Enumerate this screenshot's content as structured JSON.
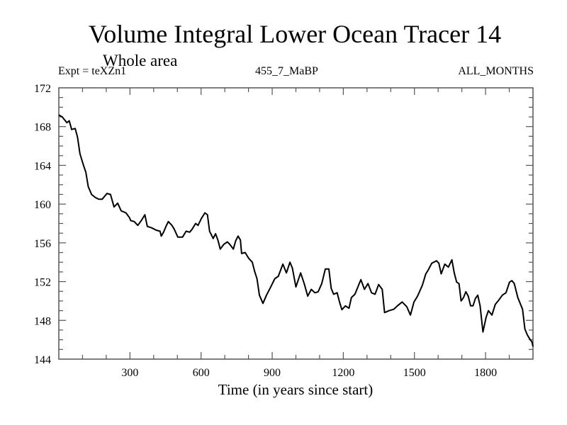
{
  "header": {
    "title": "Volume Integral Lower Ocean Tracer 14",
    "subtitle": "Whole area",
    "experiment": "Expt = teXZn1",
    "period": "455_7_MaBP",
    "months": "ALL_MONTHS"
  },
  "chart_data": {
    "type": "line",
    "title": "Volume Integral Lower Ocean Tracer 14",
    "subtitle": "Whole area",
    "xlabel": "Time (in years since start)",
    "ylabel": "",
    "xlim": [
      0,
      2000
    ],
    "ylim": [
      144,
      172
    ],
    "xticks": [
      300,
      600,
      900,
      1200,
      1500,
      1800
    ],
    "xminor_step": 100,
    "yticks": [
      144,
      148,
      152,
      156,
      160,
      164,
      168,
      172
    ],
    "yminor_step": 1,
    "grid": false,
    "legend": "none",
    "series": [
      {
        "name": "Volume Integral Lower Ocean Tracer 14",
        "color": "#000000",
        "x": [
          0,
          14,
          34,
          44,
          54,
          69,
          79,
          89,
          104,
          114,
          124,
          138,
          153,
          168,
          183,
          203,
          218,
          233,
          248,
          263,
          283,
          298,
          303,
          318,
          333,
          348,
          363,
          373,
          392,
          412,
          427,
          432,
          442,
          452,
          462,
          477,
          487,
          502,
          522,
          537,
          552,
          562,
          577,
          587,
          601,
          616,
          627,
          636,
          651,
          661,
          671,
          681,
          696,
          711,
          721,
          736,
          746,
          756,
          766,
          771,
          786,
          801,
          816,
          826,
          836,
          846,
          861,
          876,
          891,
          911,
          926,
          945,
          960,
          975,
          985,
          1000,
          1020,
          1035,
          1050,
          1065,
          1080,
          1094,
          1109,
          1124,
          1139,
          1149,
          1159,
          1174,
          1184,
          1194,
          1209,
          1224,
          1234,
          1249,
          1264,
          1274,
          1289,
          1304,
          1319,
          1334,
          1349,
          1364,
          1374,
          1393,
          1413,
          1428,
          1448,
          1468,
          1483,
          1498,
          1513,
          1533,
          1548,
          1558,
          1573,
          1593,
          1603,
          1613,
          1628,
          1643,
          1658,
          1668,
          1678,
          1688,
          1697,
          1707,
          1717,
          1727,
          1737,
          1747,
          1757,
          1767,
          1777,
          1789,
          1802,
          1812,
          1827,
          1841,
          1856,
          1871,
          1886,
          1901,
          1911,
          1921,
          1936,
          1946,
          1956,
          1966,
          1976,
          1986,
          1996,
          2000
        ],
        "y": [
          169.2,
          169.0,
          168.4,
          168.6,
          167.7,
          167.8,
          166.9,
          165.2,
          164.0,
          163.3,
          161.8,
          161.0,
          160.7,
          160.5,
          160.5,
          161.1,
          161.0,
          159.7,
          160.1,
          159.3,
          159.1,
          158.6,
          158.3,
          158.2,
          157.8,
          158.3,
          158.9,
          157.7,
          157.55,
          157.3,
          157.2,
          156.7,
          157.1,
          157.7,
          158.2,
          157.8,
          157.4,
          156.6,
          156.6,
          157.2,
          157.1,
          157.4,
          158.0,
          157.8,
          158.5,
          159.1,
          158.9,
          157.2,
          156.45,
          156.95,
          156.3,
          155.35,
          155.85,
          156.1,
          155.85,
          155.35,
          156.2,
          156.7,
          156.3,
          154.9,
          155.0,
          154.4,
          154.0,
          153.05,
          152.3,
          150.6,
          149.75,
          150.6,
          151.3,
          152.3,
          152.55,
          153.8,
          152.9,
          154.0,
          153.4,
          151.45,
          152.9,
          151.8,
          150.5,
          151.2,
          150.85,
          150.95,
          151.8,
          153.3,
          153.3,
          151.3,
          150.7,
          150.85,
          149.9,
          149.1,
          149.5,
          149.25,
          150.35,
          150.7,
          151.6,
          152.2,
          151.2,
          151.8,
          150.85,
          150.7,
          151.7,
          151.2,
          148.8,
          149.0,
          149.15,
          149.5,
          149.9,
          149.4,
          148.55,
          149.9,
          150.5,
          151.6,
          152.8,
          153.2,
          153.9,
          154.15,
          153.9,
          152.8,
          153.8,
          153.5,
          154.25,
          152.9,
          151.95,
          151.8,
          150.0,
          150.35,
          150.95,
          150.5,
          149.5,
          149.5,
          150.25,
          150.6,
          149.5,
          146.8,
          148.3,
          149.0,
          148.55,
          149.65,
          150.1,
          150.6,
          150.85,
          151.95,
          152.1,
          151.8,
          150.35,
          149.75,
          149.15,
          147.1,
          146.5,
          146.1,
          145.75,
          145.3
        ]
      }
    ]
  }
}
